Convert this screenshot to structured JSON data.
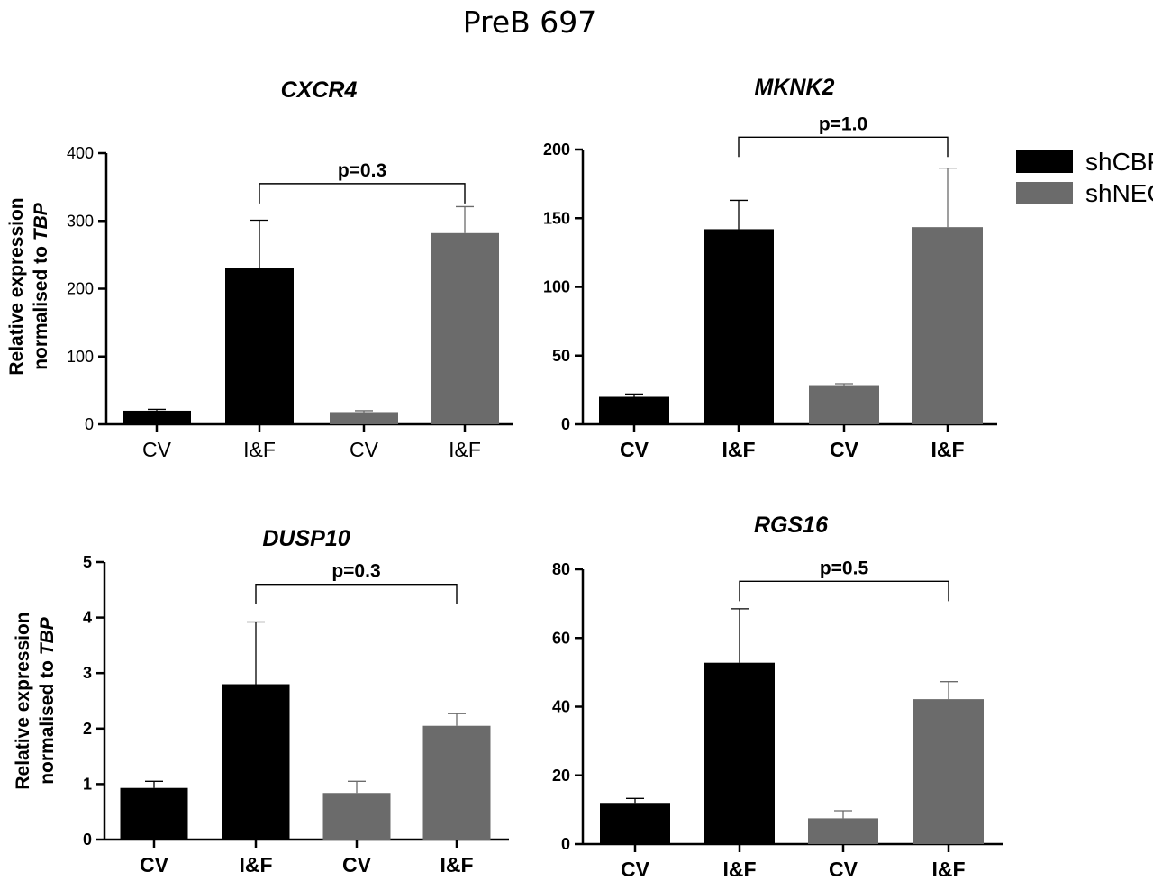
{
  "figure": {
    "title": "PreB 697"
  },
  "colors": {
    "shCBP": "#000000",
    "shNEG": "#6b6b6b",
    "axis": "#000000",
    "text": "#000000"
  },
  "legend": [
    {
      "label": "shCBP",
      "color": "#000000"
    },
    {
      "label": "shNEG",
      "color": "#6b6b6b"
    }
  ],
  "chart_data": [
    {
      "type": "bar",
      "title": "CXCR4",
      "ylabel_line1": "Relative expression",
      "ylabel_line2_prefix": "normalised to ",
      "ylabel_line2_gene": "TBP",
      "categories": [
        "CV",
        "I&F",
        "CV",
        "I&F"
      ],
      "groups": [
        "shCBP",
        "shCBP",
        "shNEG",
        "shNEG"
      ],
      "values": [
        20,
        230,
        18,
        282
      ],
      "errors": [
        2,
        71,
        2,
        39
      ],
      "ylim": [
        0,
        400
      ],
      "yticks": [
        0,
        100,
        200,
        300,
        400
      ],
      "tick_weight": "normal",
      "annotation": {
        "text": "p=0.3",
        "from": 1,
        "to": 3,
        "y": 355
      }
    },
    {
      "type": "bar",
      "title": "MKNK2",
      "ylabel_line1": "",
      "ylabel_line2_prefix": "",
      "ylabel_line2_gene": "",
      "categories": [
        "CV",
        "I&F",
        "CV",
        "I&F"
      ],
      "groups": [
        "shCBP",
        "shCBP",
        "shNEG",
        "shNEG"
      ],
      "values": [
        20,
        142,
        28.5,
        143.5
      ],
      "errors": [
        2,
        21,
        1,
        43
      ],
      "ylim": [
        0,
        200
      ],
      "yticks": [
        0,
        50,
        100,
        150,
        200
      ],
      "tick_weight": "bold",
      "annotation": {
        "text": "p=1.0",
        "from": 1,
        "to": 3,
        "y": 209
      }
    },
    {
      "type": "bar",
      "title": "DUSP10",
      "ylabel_line1": "Relative expression",
      "ylabel_line2_prefix": "normalised to ",
      "ylabel_line2_gene": "TBP",
      "categories": [
        "CV",
        "I&F",
        "CV",
        "I&F"
      ],
      "groups": [
        "shCBP",
        "shCBP",
        "shNEG",
        "shNEG"
      ],
      "values": [
        0.93,
        2.8,
        0.84,
        2.05
      ],
      "errors": [
        0.12,
        1.12,
        0.21,
        0.22
      ],
      "ylim": [
        0,
        5
      ],
      "yticks": [
        0,
        1,
        2,
        3,
        4,
        5
      ],
      "tick_weight": "bold",
      "annotation": {
        "text": "p=0.3",
        "from": 1,
        "to": 3,
        "y": 4.6
      }
    },
    {
      "type": "bar",
      "title": "RGS16",
      "ylabel_line1": "",
      "ylabel_line2_prefix": "",
      "ylabel_line2_gene": "",
      "categories": [
        "CV",
        "I&F",
        "CV",
        "I&F"
      ],
      "groups": [
        "shCBP",
        "shCBP",
        "shNEG",
        "shNEG"
      ],
      "values": [
        12,
        52.8,
        7.5,
        42.2
      ],
      "errors": [
        1.3,
        15.7,
        2.2,
        5.1
      ],
      "ylim": [
        0,
        80
      ],
      "yticks": [
        0,
        20,
        40,
        60,
        80
      ],
      "tick_weight": "bold",
      "annotation": {
        "text": "p=0.5",
        "from": 1,
        "to": 3,
        "y": 76.5
      }
    }
  ]
}
